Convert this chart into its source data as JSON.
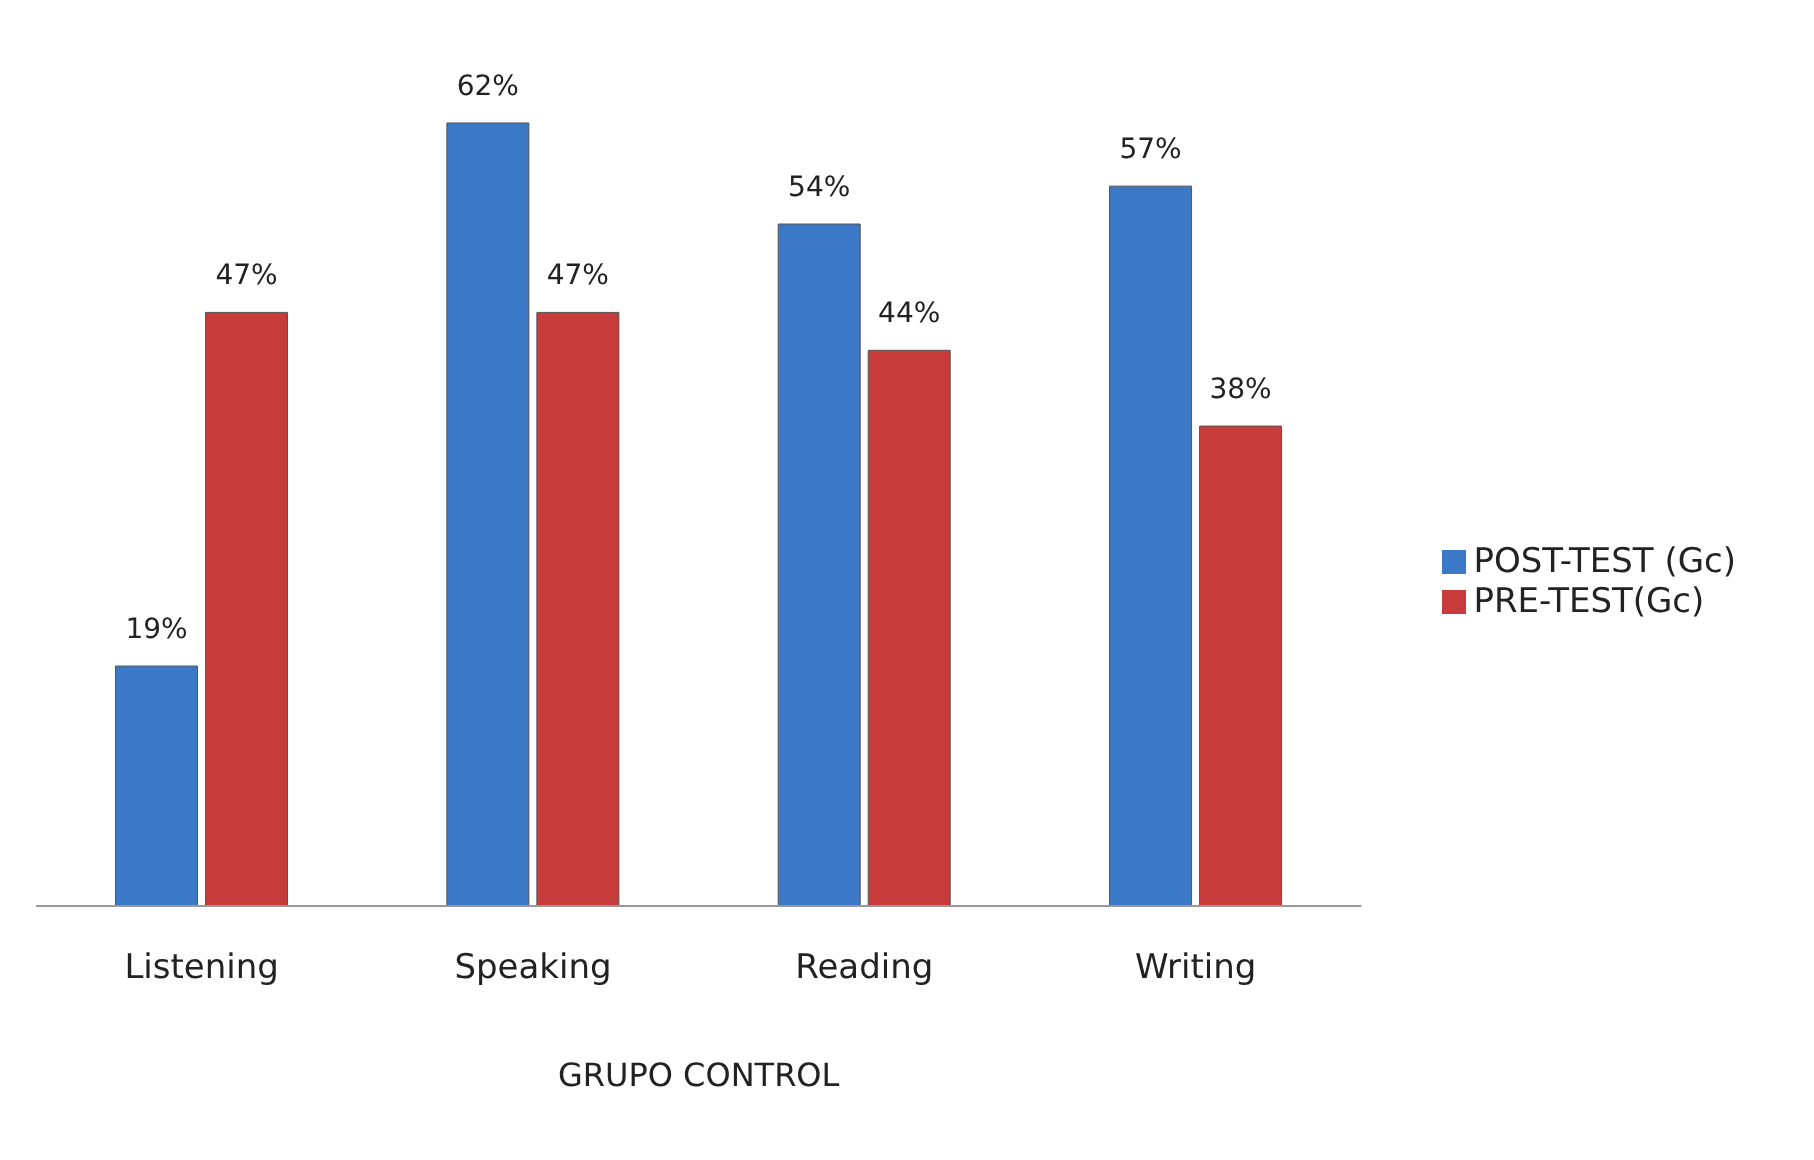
{
  "chart_data": {
    "type": "bar",
    "xlabel": "GRUPO CONTROL",
    "categories": [
      "Listening",
      "Speaking",
      "Reading",
      "Writing"
    ],
    "series": [
      {
        "name": "POST-TEST (Gc)",
        "color": "#3b78c8",
        "values": [
          19,
          62,
          54,
          57
        ],
        "value_labels": [
          "19%",
          "62%",
          "54%",
          "57%"
        ]
      },
      {
        "name": "PRE-TEST(Gc)",
        "color": "#c83b3b",
        "values": [
          47,
          47,
          44,
          38
        ],
        "value_labels": [
          "47%",
          "47%",
          "44%",
          "38%"
        ]
      }
    ],
    "legend": "right",
    "grid": false
  }
}
